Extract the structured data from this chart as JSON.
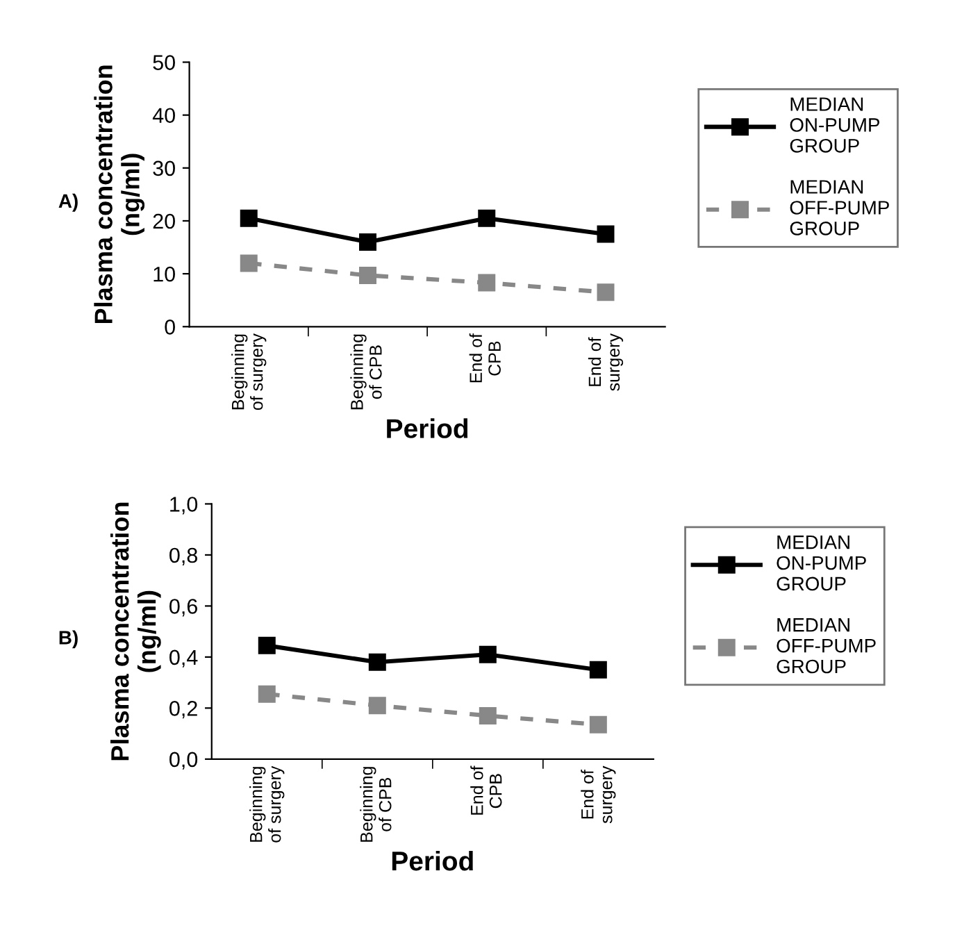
{
  "chart_data": [
    {
      "type": "line",
      "ylabel": "Plasma concentration\n(ng/ml)",
      "xlabel": "Period",
      "annotations": [
        "A)"
      ],
      "categories": [
        "Beginning\nof surgery",
        "Beginning\nof CPB",
        "End of\nCPB",
        "End of\nsurgery"
      ],
      "series": [
        {
          "name": "MEDIAN\nON-PUMP\nGROUP",
          "color": "#000000",
          "values": [
            20.5,
            16,
            20.5,
            17.5
          ],
          "line_style": "solid"
        },
        {
          "name": "MEDIAN\nOFF-PUMP\nGROUP",
          "color": "#888888",
          "values": [
            12,
            9.7,
            8.3,
            6.5
          ],
          "line_style": "dashed"
        }
      ],
      "ylim": [
        0,
        50
      ],
      "yticks": [
        0,
        10,
        20,
        30,
        40,
        50
      ],
      "legend": "right",
      "marker": "square",
      "grid": false
    },
    {
      "type": "line",
      "ylabel": "Plasma concentration\n(ng/ml)",
      "xlabel": "Period",
      "annotations": [
        "B)"
      ],
      "categories": [
        "Beginning\nof surgery",
        "Beginning\nof CPB",
        "End of\nCPB",
        "End of\nsurgery"
      ],
      "series": [
        {
          "name": "MEDIAN\nON-PUMP\nGROUP",
          "color": "#000000",
          "values": [
            0.445,
            0.38,
            0.41,
            0.35
          ],
          "line_style": "solid"
        },
        {
          "name": "MEDIAN\nOFF-PUMP\nGROUP",
          "color": "#888888",
          "values": [
            0.255,
            0.21,
            0.17,
            0.135
          ],
          "line_style": "dashed"
        }
      ],
      "ylim": [
        0,
        1
      ],
      "yticks": [
        {
          "value": 0,
          "label": "0,0"
        },
        {
          "value": 0.2,
          "label": "0,2"
        },
        {
          "value": 0.4,
          "label": "0,4"
        },
        {
          "value": 0.6,
          "label": "0,6"
        },
        {
          "value": 0.8,
          "label": "0,8"
        },
        {
          "value": 1,
          "label": "1,0"
        }
      ],
      "legend": "right",
      "marker": "square",
      "grid": false
    }
  ]
}
